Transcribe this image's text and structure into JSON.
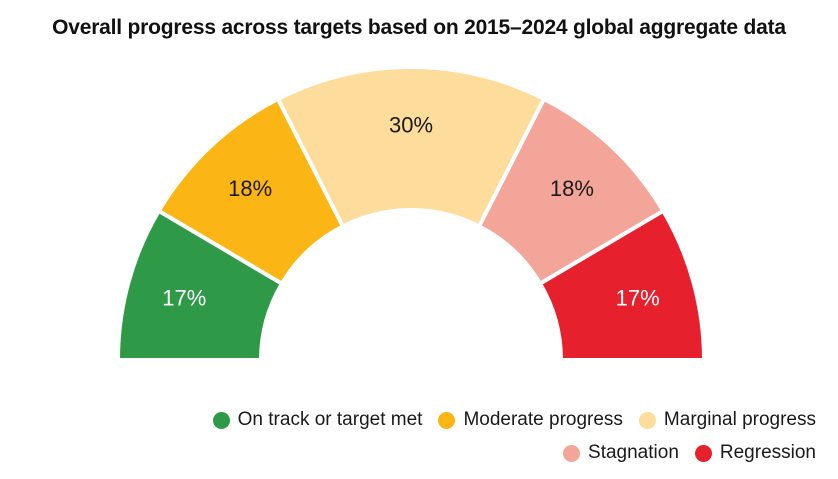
{
  "title": "Overall progress across targets based on 2015–2024 global aggregate data",
  "chart_data": {
    "type": "pie",
    "subtype": "half-donut",
    "title": "Overall progress across targets based on 2015–2024 global aggregate data",
    "categories": [
      "On track or target met",
      "Moderate progress",
      "Marginal progress",
      "Stagnation",
      "Regression"
    ],
    "values": [
      17,
      18,
      30,
      18,
      17
    ],
    "labels": [
      "17%",
      "18%",
      "30%",
      "18%",
      "17%"
    ],
    "colors": [
      "#2e9a47",
      "#fbb616",
      "#fddc9c",
      "#f4a59a",
      "#e7202e"
    ],
    "label_colors": [
      "#ffffff",
      "#1a1a1a",
      "#1a1a1a",
      "#1a1a1a",
      "#ffffff"
    ],
    "legend_position": "bottom-right"
  }
}
